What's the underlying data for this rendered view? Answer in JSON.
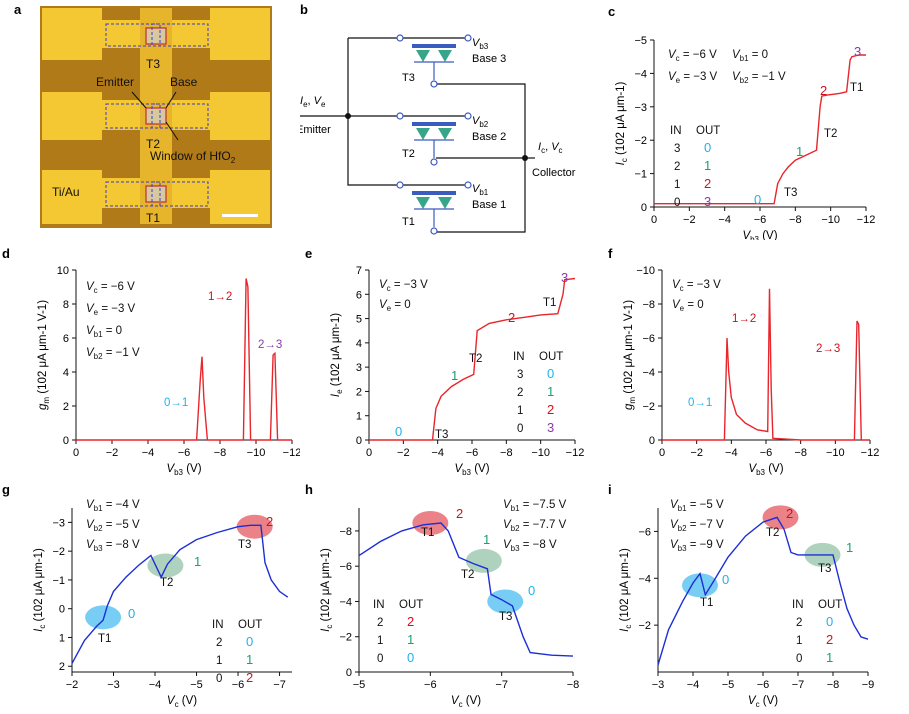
{
  "panels": {
    "a": {
      "letter": "a",
      "labels": {
        "t3": "T3",
        "emitter": "Emitter",
        "base": "Base",
        "t2": "T2",
        "window": "Window of HfO",
        "window_sub": "2",
        "tiau": "Ti/Au",
        "t1": "T1"
      }
    },
    "b": {
      "letter": "b",
      "labels": {
        "vb3": "V",
        "vb3_sub": "b3",
        "base3": "Base 3",
        "t3": "T3",
        "vb2": "V",
        "vb2_sub": "b2",
        "base2": "Base 2",
        "t2": "T2",
        "vb1": "V",
        "vb1_sub": "b1",
        "base1": "Base 1",
        "t1": "T1",
        "ie": "I",
        "ie_sub": "e",
        "ve": "V",
        "ve_sub": "e",
        "emitter": "Emitter",
        "ic": "I",
        "ic_sub": "c",
        "vc": "V",
        "vc_sub": "c",
        "collector": "Collector"
      }
    },
    "c": {
      "letter": "c"
    },
    "d": {
      "letter": "d"
    },
    "e": {
      "letter": "e"
    },
    "f": {
      "letter": "f"
    },
    "g": {
      "letter": "g"
    },
    "h": {
      "letter": "h"
    },
    "i": {
      "letter": "i"
    }
  },
  "chart_data": [
    {
      "id": "c",
      "type": "line",
      "xlabel": "V_b3 (V)",
      "ylabel": "I_c (10^2 μA μm^-1)",
      "xlim": [
        0,
        -12
      ],
      "ylim": [
        0,
        -5
      ],
      "xticks": [
        "0",
        "−2",
        "−4",
        "−6",
        "−8",
        "−10",
        "−12"
      ],
      "yticks": [
        "0",
        "−1",
        "−2",
        "−3",
        "−4",
        "−5"
      ],
      "series": [
        {
          "color": "#e8262b",
          "x": [
            0,
            -6.8,
            -7.0,
            -7.3,
            -7.6,
            -8.0,
            -8.6,
            -9.2,
            -9.4,
            -9.5,
            -9.8,
            -10.5,
            -10.9,
            -11.1,
            -11.2,
            -11.6,
            -12
          ],
          "y": [
            -0.1,
            -0.1,
            -0.7,
            -1.0,
            -1.2,
            -1.4,
            -1.55,
            -1.7,
            -3.0,
            -3.32,
            -3.35,
            -3.4,
            -3.45,
            -4.4,
            -4.5,
            -4.55,
            -4.55
          ]
        }
      ],
      "annotations": [
        {
          "text": "V_c = −6 V",
          "sub": ""
        },
        {
          "text": "V_b1 = 0"
        },
        {
          "text": "V_e = −3 V"
        },
        {
          "text": "V_b2 = −1 V"
        }
      ],
      "table": {
        "head": [
          "IN",
          "OUT"
        ],
        "rows": [
          [
            "3",
            "0"
          ],
          [
            "2",
            "1"
          ],
          [
            "1",
            "2"
          ],
          [
            "0",
            "3"
          ]
        ]
      },
      "marks": [
        "0",
        "1",
        "2",
        "3",
        "T3",
        "T2",
        "T1"
      ]
    },
    {
      "id": "d",
      "type": "line",
      "xlabel": "V_b3 (V)",
      "ylabel": "g_m (10^2 μA μm^-1 V^-1)",
      "xlim": [
        0,
        -12
      ],
      "ylim": [
        0,
        10
      ],
      "xticks": [
        "0",
        "−2",
        "−4",
        "−6",
        "−8",
        "−10",
        "−12"
      ],
      "yticks": [
        "0",
        "2",
        "4",
        "6",
        "8",
        "10"
      ],
      "series": [
        {
          "color": "#e8262b",
          "x": [
            0,
            -6.7,
            -6.9,
            -7.0,
            -7.1,
            -7.3,
            -9.3,
            -9.45,
            -9.55,
            -9.7,
            -10.8,
            -10.95,
            -11.05,
            -11.2,
            -12
          ],
          "y": [
            0,
            0,
            3.5,
            4.9,
            2.5,
            0,
            0,
            9.5,
            9.0,
            0,
            0,
            5.0,
            5.1,
            0,
            0
          ]
        }
      ],
      "annotations": [
        "V_c = −6 V",
        "V_e = −3 V",
        "V_b1 = 0",
        "V_b2 = −1 V"
      ],
      "marks": [
        "0→1",
        "1→2",
        "2→3"
      ]
    },
    {
      "id": "e",
      "type": "line",
      "xlabel": "V_b3 (V)",
      "ylabel": "I_e (10^2 μA μm^-1)",
      "xlim": [
        0,
        -12
      ],
      "ylim": [
        0,
        7
      ],
      "xticks": [
        "0",
        "−2",
        "−4",
        "−6",
        "−8",
        "−10",
        "−12"
      ],
      "yticks": [
        "0",
        "1",
        "2",
        "3",
        "4",
        "5",
        "6",
        "7"
      ],
      "series": [
        {
          "color": "#e8262b",
          "x": [
            0,
            -3.7,
            -3.9,
            -4.2,
            -4.8,
            -5.5,
            -6.1,
            -6.3,
            -7.0,
            -8.0,
            -9.0,
            -10.0,
            -11.0,
            -11.3,
            -11.4,
            -12
          ],
          "y": [
            0,
            0,
            1.3,
            1.8,
            2.2,
            2.5,
            2.7,
            4.5,
            4.8,
            4.95,
            5.05,
            5.15,
            5.2,
            6.0,
            6.6,
            6.65
          ]
        }
      ],
      "annotations": [
        "V_c = −3 V",
        "V_e = 0"
      ],
      "table": {
        "head": [
          "IN",
          "OUT"
        ],
        "rows": [
          [
            "3",
            "0"
          ],
          [
            "2",
            "1"
          ],
          [
            "1",
            "2"
          ],
          [
            "0",
            "3"
          ]
        ]
      },
      "marks": [
        "0",
        "1",
        "2",
        "3",
        "T3",
        "T2",
        "T1"
      ]
    },
    {
      "id": "f",
      "type": "line",
      "xlabel": "V_b3 (V)",
      "ylabel": "g_m (10^2 μA μm^-1 V^-1)",
      "xlim": [
        0,
        -12
      ],
      "ylim": [
        0,
        -10
      ],
      "xticks": [
        "0",
        "−2",
        "−4",
        "−6",
        "−8",
        "−10",
        "−12"
      ],
      "yticks": [
        "0",
        "−2",
        "−4",
        "−6",
        "−8",
        "−10"
      ],
      "series": [
        {
          "color": "#e8262b",
          "x": [
            0,
            -3.6,
            -3.75,
            -3.85,
            -4.0,
            -4.3,
            -4.8,
            -5.5,
            -6.1,
            -6.2,
            -6.3,
            -6.4,
            -8,
            -11.1,
            -11.25,
            -11.35,
            -11.5,
            -12
          ],
          "y": [
            0,
            0,
            -6.0,
            -4.0,
            -2.5,
            -1.5,
            -1.0,
            -0.6,
            -0.5,
            -8.9,
            -3.0,
            -0.1,
            0,
            0,
            -7.0,
            -6.8,
            0,
            0
          ]
        }
      ],
      "annotations": [
        "V_c = −3 V",
        "V_e = 0"
      ],
      "marks": [
        "0→1",
        "1→2",
        "2→3"
      ]
    },
    {
      "id": "g",
      "type": "line",
      "xlabel": "V_c (V)",
      "ylabel": "I_c (10^2 μA μm^-1)",
      "xlim": [
        -2,
        -7.3
      ],
      "ylim": [
        2.2,
        -3.5
      ],
      "xticks": [
        "−2",
        "−3",
        "−4",
        "−5",
        "−6",
        "−7"
      ],
      "yticks": [
        "2",
        "1",
        "0",
        "−1",
        "−2",
        "−3"
      ],
      "series": [
        {
          "color": "#1c2fd6",
          "x": [
            -2,
            -2.3,
            -2.6,
            -2.75,
            -2.85,
            -3.0,
            -3.3,
            -3.6,
            -3.9,
            -4.15,
            -4.3,
            -4.6,
            -5.0,
            -5.5,
            -6.0,
            -6.3,
            -6.55,
            -6.65,
            -6.8,
            -7.0,
            -7.2
          ],
          "y": [
            1.9,
            1.1,
            0.6,
            0.4,
            -0.1,
            -0.6,
            -1.1,
            -1.5,
            -1.85,
            -1.1,
            -1.55,
            -2.05,
            -2.4,
            -2.65,
            -2.85,
            -2.9,
            -2.9,
            -1.6,
            -1.0,
            -0.6,
            -0.4
          ]
        }
      ],
      "annotations": [
        "V_b1 = −4 V",
        "V_b2 = −5 V",
        "V_b3 = −8 V"
      ],
      "table": {
        "head": [
          "IN",
          "OUT"
        ],
        "rows": [
          [
            "2",
            "0"
          ],
          [
            "1",
            "1"
          ],
          [
            "0",
            "2"
          ]
        ]
      },
      "marks": [
        "0",
        "1",
        "2",
        "T1",
        "T2",
        "T3"
      ]
    },
    {
      "id": "h",
      "type": "line",
      "xlabel": "V_c (V)",
      "ylabel": "I_c (10^2 μA μm^-1)",
      "xlim": [
        -5,
        -8
      ],
      "ylim": [
        0,
        -9.3
      ],
      "xticks": [
        "−5",
        "−6",
        "−7",
        "−8"
      ],
      "yticks": [
        "0",
        "−2",
        "−4",
        "−6",
        "−8"
      ],
      "series": [
        {
          "color": "#1c2fd6",
          "x": [
            -5,
            -5.3,
            -5.6,
            -5.9,
            -6.15,
            -6.25,
            -6.4,
            -6.6,
            -6.8,
            -6.85,
            -7.0,
            -7.15,
            -7.3,
            -7.4,
            -7.7,
            -8.0
          ],
          "y": [
            -6.6,
            -7.4,
            -8.0,
            -8.35,
            -8.45,
            -8.0,
            -6.5,
            -6.15,
            -5.85,
            -4.4,
            -4.1,
            -3.75,
            -2.0,
            -1.1,
            -0.95,
            -0.9
          ]
        }
      ],
      "annotations": [
        "V_b1 = −7.5 V",
        "V_b2 = −7.7 V",
        "V_b3 = −8 V"
      ],
      "table": {
        "head": [
          "IN",
          "OUT"
        ],
        "rows": [
          [
            "2",
            "2"
          ],
          [
            "1",
            "1"
          ],
          [
            "0",
            "0"
          ]
        ]
      },
      "marks": [
        "2",
        "1",
        "0",
        "T1",
        "T2",
        "T3"
      ]
    },
    {
      "id": "i",
      "type": "line",
      "xlabel": "V_c (V)",
      "ylabel": "I_c (10^2 μA μm^-1)",
      "xlim": [
        -3,
        -9
      ],
      "ylim": [
        0,
        -7
      ],
      "xticks": [
        "−3",
        "−4",
        "−5",
        "−6",
        "−7",
        "−8",
        "−9"
      ],
      "yticks": [
        "−2",
        "−4",
        "−6"
      ],
      "series": [
        {
          "color": "#1c2fd6",
          "x": [
            -3.0,
            -3.3,
            -3.7,
            -4.0,
            -4.2,
            -4.35,
            -4.6,
            -5.0,
            -5.5,
            -6.0,
            -6.4,
            -6.6,
            -6.8,
            -7.0,
            -7.5,
            -8.0,
            -8.2,
            -8.4,
            -8.6,
            -8.8,
            -9.0
          ],
          "y": [
            -0.3,
            -1.8,
            -3.0,
            -3.8,
            -4.2,
            -3.3,
            -3.9,
            -4.9,
            -5.8,
            -6.4,
            -6.6,
            -6.1,
            -5.1,
            -5.0,
            -5.0,
            -5.0,
            -3.8,
            -2.7,
            -2.0,
            -1.5,
            -1.4
          ]
        }
      ],
      "annotations": [
        "V_b1 = −5 V",
        "V_b2 = −7 V",
        "V_b3 = −9 V"
      ],
      "table": {
        "head": [
          "IN",
          "OUT"
        ],
        "rows": [
          [
            "2",
            "0"
          ],
          [
            "1",
            "2"
          ],
          [
            "0",
            "1"
          ]
        ]
      },
      "marks": [
        "0",
        "2",
        "1",
        "T1",
        "T2",
        "T3"
      ]
    }
  ],
  "colors": {
    "red": "#e8262b",
    "blue": "#1c2fd6",
    "cyan": "#1fb3e8",
    "green": "#1d9e74",
    "crimson": "#d0101e",
    "purple": "#8a3aa8",
    "shade_red": "#e24d55",
    "shade_green": "#8dbfa2",
    "shade_blue": "#3fb8f0",
    "gold": "#f4c42a",
    "brown": "#b47a16"
  }
}
